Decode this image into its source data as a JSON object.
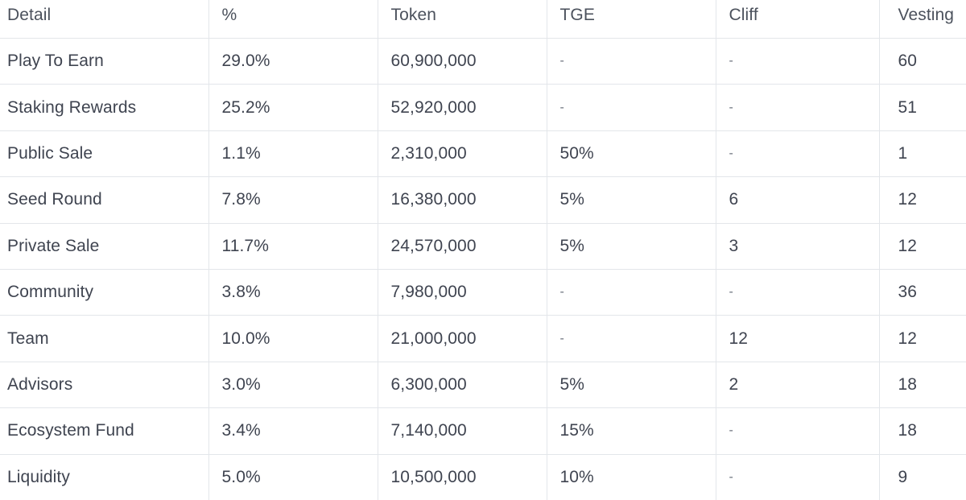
{
  "table": {
    "columns": [
      "Detail",
      "%",
      "Token",
      "TGE",
      "Cliff",
      "Vesting"
    ],
    "rows": [
      [
        "Play To Earn",
        "29.0%",
        "60,900,000",
        "-",
        "-",
        "60"
      ],
      [
        "Staking Rewards",
        "25.2%",
        "52,920,000",
        "-",
        "-",
        "51"
      ],
      [
        "Public Sale",
        "1.1%",
        "2,310,000",
        "50%",
        "-",
        "1"
      ],
      [
        "Seed Round",
        "7.8%",
        "16,380,000",
        "5%",
        "6",
        "12"
      ],
      [
        "Private Sale",
        "11.7%",
        "24,570,000",
        "5%",
        "3",
        "12"
      ],
      [
        "Community",
        "3.8%",
        "7,980,000",
        "-",
        "-",
        "36"
      ],
      [
        "Team",
        "10.0%",
        "21,000,000",
        "-",
        "12",
        "12"
      ],
      [
        "Advisors",
        "3.0%",
        "6,300,000",
        "5%",
        "2",
        "18"
      ],
      [
        "Ecosystem Fund",
        "3.4%",
        "7,140,000",
        "15%",
        "-",
        "18"
      ],
      [
        "Liquidity",
        "5.0%",
        "10,500,000",
        "10%",
        "-",
        "9"
      ]
    ]
  }
}
